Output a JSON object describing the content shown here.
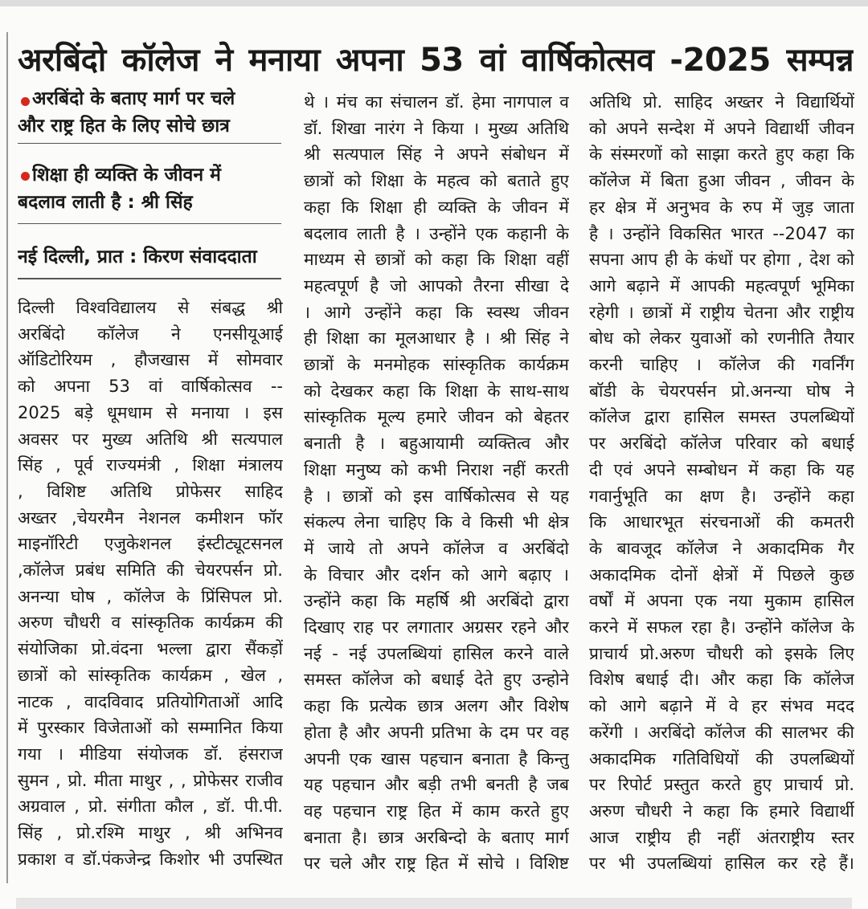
{
  "headline": "अरबिंदो कॉलेज ने मनाया अपना 53 वां वार्षिकोत्सव -2025 सम्पन्न",
  "highlights": [
    {
      "lines": [
        "अरबिंदो के बताए मार्ग पर चले",
        "और राष्ट्र हित के लिए सोचे छात्र"
      ]
    },
    {
      "lines": [
        "शिक्षा ही व्यक्ति के जीवन में",
        "बदलाव लाती है : श्री सिंह"
      ]
    }
  ],
  "byline": "नई दिल्ली, प्रात : किरण संवाददाता",
  "columns": [
    [
      "दिल्ली विश्वविद्यालय से संबद्ध श्री",
      "अरबिंदो  कॉलेज ने एनसीयूआई",
      "ऑडिटोरियम , हौजखास में सोमवार",
      "को अपना 53 वां वार्षिकोत्सव --",
      "2025 बड़े धूमधाम से मनाया । इस",
      "अवसर पर मुख्य अतिथि श्री सत्यपाल",
      "सिंह , पूर्व राज्यमंत्री , शिक्षा मंत्रालय",
      ", विशिष्ट अतिथि  प्रोफेसर साहिद",
      "अख्तर ,चेयरमैन नेशनल कमीशन फॉर",
      "माइनॉरिटी एजुकेशनल इंस्टीट्यूटसनल",
      ",कॉलेज प्रबंध समिति की चेयरपर्सन प्रो.",
      "अनन्या घोष ,  कॉलेज के प्रिंसिपल प्रो.",
      "अरुण चौधरी व सांस्कृतिक कार्यक्रम की",
      "संयोजिका प्रो.वंदना भल्ला द्वारा सैंकड़ों",
      "छात्रों को सांस्कृतिक कार्यक्रम , खेल ,",
      "नाटक , वादविवाद प्रतियोगिताओं आदि",
      "में पुरस्कार विजेताओं को सम्मानित किया",
      "गया । मीडिया संयोजक डॉ. हंसराज",
      "सुमन , प्रो. मीता माथुर , , प्रोफेसर राजीव",
      "अग्रवाल , प्रो. संगीता कौल , डॉ. पी.पी.",
      "सिंह , प्रो.रश्मि माथुर , श्री अभिनव",
      "प्रकाश व डॉ.पंकजेन्द्र किशोर भी उपस्थित"
    ],
    [
      "थे । मंच का संचालन डॉ. हेमा नागपाल व",
      "डॉ. शिखा नारंग ने किया । मुख्य अतिथि",
      "श्री सत्यपाल सिंह ने अपने संबोधन में",
      "छात्रों को शिक्षा के महत्व को बताते हुए",
      "कहा कि शिक्षा ही व्यक्ति के जीवन में",
      "बदलाव लाती है । उन्होंने एक कहानी के",
      "माध्यम से छात्रों को कहा कि शिक्षा वहीं",
      "महत्वपूर्ण है जो आपको तैरना सीखा दे",
      "। आगे उन्होंने कहा कि स्वस्थ जीवन",
      "ही शिक्षा का मूलआधार है । श्री सिंह ने",
      "छात्रों के मनमोहक सांस्कृतिक कार्यक्रम",
      "को देखकर कहा कि शिक्षा के साथ-साथ",
      "सांस्कृतिक मूल्य हमारे जीवन को बेहतर",
      "बनाती है ।  बहुआयामी व्यक्तित्व और",
      "शिक्षा मनुष्य को कभी निराश नहीं करती",
      "है । छात्रों को इस वार्षिकोत्सव से यह",
      "संकल्प लेना चाहिए कि वे किसी भी क्षेत्र",
      "में जाये तो अपने कॉलेज व अरबिंदो",
      "के विचार और दर्शन को आगे बढ़ाए ।",
      "उन्होंने कहा कि महर्षि श्री अरबिंदो द्वारा",
      "दिखाए राह पर लगातार अग्रसर रहने और",
      "नई - नई उपलब्धियां हासिल करने वाले",
      "समस्त कॉलेज को बधाई देते हुए उन्होने",
      "कहा कि प्रत्येक छात्र अलग और विशेष",
      "होता है और अपनी प्रतिभा के दम पर वह",
      "अपनी एक खास पहचान बनाता है किन्तु",
      "यह पहचान और बड़ी तभी बनती है जब",
      "वह पहचान राष्ट्र हित में काम करते हुए",
      "बनाता है। छात्र अरबिन्दो के बताए मार्ग",
      "पर चले और राष्ट्र हित में सोचे । विशिष्ट"
    ],
    [
      "अतिथि प्रो. साहिद अख्तर ने विद्यार्थियों",
      "को अपने सन्देश में अपने विद्यार्थी जीवन",
      "के संस्मरणों को साझा करते हुए कहा कि",
      "कॉलेज में बिता हुआ जीवन , जीवन के",
      "हर क्षेत्र में अनुभव के रुप में जुड़ जाता",
      "है । उन्होंने विकसित भारत --2047 का",
      "सपना आप ही के कंधों पर होगा , देश को",
      "आगे बढ़ाने में आपकी महत्वपूर्ण भूमिका",
      "रहेगी । छात्रों में राष्ट्रीय चेतना और राष्ट्रीय",
      "बोध को लेकर युवाओं को रणनीति तैयार",
      "करनी चाहिए ।  कॉलेज की गवर्निंग",
      "बॉडी के चेयरपर्सन प्रो.अनन्या घोष  ने",
      "कॉलेज द्वारा हासिल समस्त उपलब्धियों",
      "पर अरबिंदो कॉलेज परिवार को बधाई",
      "दी एवं अपने सम्बोधन में कहा कि यह",
      "गवार्नुभूति का क्षण है। उन्होंने कहा",
      "कि आधारभूत संरचनाओं की कमतरी",
      "के बावजूद कॉलेज ने अकादमिक गैर",
      "अकादमिक दोनों क्षेत्रों में पिछले कुछ",
      "वर्षों में अपना एक नया मुकाम हासिल",
      "करने में सफल रहा है। उन्होंने कॉलेज के",
      "प्राचार्य प्रो.अरुण चौधरी को इसके लिए",
      "विशेष बधाई दी। और कहा कि कॉलेज",
      "को आगे बढ़ाने में वे हर संभव मदद",
      "करेंगी । अरबिंदो कॉलेज की सालभर की",
      "अकादमिक गतिविधियों की उपलब्धियों",
      "पर रिपोर्ट प्रस्तुत करते हुए प्राचार्य प्रो.",
      "अरुण चौधरी ने कहा कि हमारे विद्यार्थी",
      "आज राष्ट्रीय ही नहीं अंतराष्ट्रीय स्तर",
      "पर भी उपलब्धियां हासिल कर रहे हैं।"
    ]
  ]
}
